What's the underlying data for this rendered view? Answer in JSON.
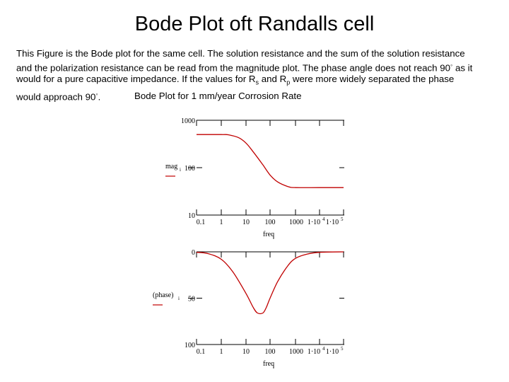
{
  "slide": {
    "title": "Bode Plot oft Randalls cell",
    "description": {
      "line1": "This Figure is the Bode plot for the same cell. The solution resistance and the sum of the solution resistance",
      "line2": "and the polarization resistance can be read from the magnitude plot. The phase angle does not reach 90",
      "line2_degree": "◦",
      "line2_end": " as it",
      "line3_a": "would for a pure capacitive impedance. If the values for R",
      "line3_sub_s": "s",
      "line3_b": " and R",
      "line3_sub_p": "p",
      "line3_c": " were more widely separated the phase",
      "line4": "would approach 90",
      "line4_degree": "◦",
      "line4_end": "."
    },
    "chart_caption": "Bode Plot for 1 mm/year Corrosion Rate"
  },
  "chart_data": [
    {
      "type": "line",
      "ylabel": "mag",
      "ylabel_sub": "i",
      "xlabel": "freq",
      "xlabel_sub": "i",
      "x_scale": "log",
      "y_scale": "log",
      "xlim": [
        0.01,
        100000
      ],
      "ylim": [
        10,
        1000
      ],
      "x_tick_labels": [
        "0.1",
        "1",
        "10",
        "100",
        "1000",
        "1·10",
        "1·10"
      ],
      "x_tick_exponents": [
        "",
        "",
        "",
        "",
        "",
        "4",
        "5"
      ],
      "x_tick_values": [
        0.1,
        1,
        10,
        100,
        1000,
        10000,
        100000
      ],
      "y_tick_labels": [
        "1000",
        "100",
        "10"
      ],
      "y_tick_values": [
        1000,
        100,
        10
      ],
      "color": "#c00000",
      "x": [
        0.01,
        0.1,
        1,
        2,
        5,
        10,
        20,
        50,
        100,
        200,
        500,
        1000,
        10000,
        100000
      ],
      "values": [
        500,
        500,
        499,
        492,
        430,
        330,
        215,
        115,
        70,
        50,
        40,
        38,
        38,
        38
      ]
    },
    {
      "type": "line",
      "ylabel": "(phase)",
      "ylabel_sub": "i",
      "xlabel": "freq",
      "xlabel_sub": "i",
      "x_scale": "log",
      "xlim": [
        0.01,
        100000
      ],
      "ylim": [
        -100,
        0
      ],
      "x_tick_labels": [
        "0.1",
        "1",
        "10",
        "100",
        "1000",
        "1·10",
        "1·10"
      ],
      "x_tick_exponents": [
        "",
        "",
        "",
        "",
        "",
        "4",
        "5"
      ],
      "x_tick_values": [
        0.1,
        1,
        10,
        100,
        1000,
        10000,
        100000
      ],
      "y_tick_labels": [
        "0",
        "50",
        "100"
      ],
      "y_tick_values": [
        0,
        -50,
        -100
      ],
      "color": "#c00000",
      "x": [
        0.01,
        0.1,
        0.3,
        1,
        3,
        10,
        20,
        30,
        50,
        70,
        100,
        200,
        500,
        1000,
        3000,
        10000,
        100000
      ],
      "values": [
        0,
        -0.5,
        -2,
        -8,
        -22,
        -45,
        -60,
        -66,
        -66,
        -60,
        -50,
        -32,
        -15,
        -7,
        -2.5,
        -0.5,
        0
      ]
    }
  ]
}
